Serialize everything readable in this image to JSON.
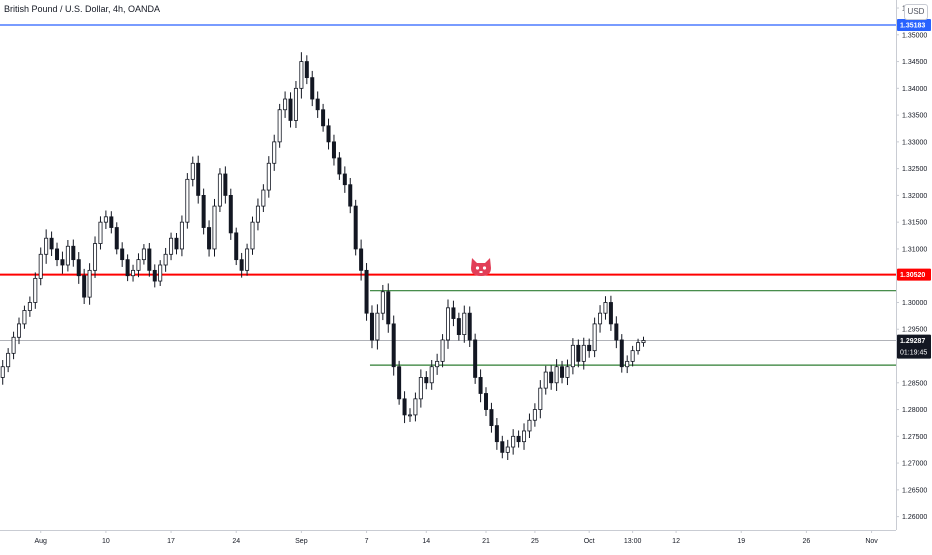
{
  "header": {
    "symbol_title": "British Pound / U.S. Dollar, 4h, OANDA",
    "currency_button": "USD"
  },
  "colors": {
    "candle": "#131722",
    "blue_line": "#2962ff",
    "red_line": "#ff0000",
    "green_line": "#2e7d32",
    "last_price_line": "#9598a1",
    "axis_text": "#131722",
    "logo": "#e23e57"
  },
  "chart_data": {
    "type": "candlestick",
    "title": "British Pound / U.S. Dollar, 4h, OANDA",
    "ylim": [
      1.2575,
      1.3565
    ],
    "y_ticks": [
      "1.26000",
      "1.26500",
      "1.27000",
      "1.27500",
      "1.28000",
      "1.28500",
      "1.29000",
      "1.29500",
      "1.30000",
      "1.30500",
      "1.31000",
      "1.31500",
      "1.32000",
      "1.32500",
      "1.33000",
      "1.33500",
      "1.34000",
      "1.34500",
      "1.35000",
      "1.35500"
    ],
    "x_ticks": [
      "Aug",
      "10",
      "17",
      "24",
      "Sep",
      "7",
      "14",
      "21",
      "25",
      "Oct",
      "13:00",
      "12",
      "19",
      "26",
      "Nov"
    ],
    "x_tick_index": [
      7,
      19,
      31,
      43,
      55,
      67,
      78,
      89,
      98,
      108,
      116,
      124,
      136,
      148,
      160
    ],
    "visible_bars": 165,
    "horizontal_lines": [
      {
        "name": "blue",
        "price": 1.35183,
        "label": "1.35183",
        "color": "#2962ff"
      },
      {
        "name": "red",
        "price": 1.3052,
        "label": "1.30520",
        "color": "#ff0000"
      },
      {
        "name": "green-upper",
        "price": 1.3022,
        "label": "",
        "color": "#2e7d32",
        "from_index": 68
      },
      {
        "name": "green-lower",
        "price": 1.2883,
        "label": "",
        "color": "#2e7d32",
        "from_index": 68
      }
    ],
    "last_price": {
      "value": 1.29287,
      "label": "1.29287",
      "countdown": "01:19:45"
    },
    "closes": [
      1.288,
      1.2905,
      1.2935,
      1.296,
      1.2985,
      1.3,
      1.3045,
      1.309,
      1.312,
      1.31,
      1.308,
      1.307,
      1.3105,
      1.308,
      1.305,
      1.301,
      1.306,
      1.311,
      1.315,
      1.316,
      1.314,
      1.31,
      1.308,
      1.305,
      1.306,
      1.308,
      1.31,
      1.306,
      1.304,
      1.307,
      1.309,
      1.312,
      1.31,
      1.315,
      1.323,
      1.326,
      1.32,
      1.314,
      1.31,
      1.318,
      1.324,
      1.32,
      1.313,
      1.308,
      1.306,
      1.31,
      1.315,
      1.318,
      1.321,
      1.326,
      1.33,
      1.336,
      1.338,
      1.334,
      1.34,
      1.345,
      1.342,
      1.338,
      1.336,
      1.333,
      1.33,
      1.327,
      1.324,
      1.322,
      1.318,
      1.31,
      1.306,
      1.298,
      1.293,
      1.298,
      1.302,
      1.296,
      1.288,
      1.282,
      1.279,
      1.279,
      1.282,
      1.286,
      1.285,
      1.288,
      1.289,
      1.293,
      1.299,
      1.297,
      1.294,
      1.298,
      1.293,
      1.286,
      1.283,
      1.28,
      1.277,
      1.274,
      1.272,
      1.273,
      1.275,
      1.274,
      1.276,
      1.278,
      1.28,
      1.284,
      1.287,
      1.285,
      1.288,
      1.286,
      1.288,
      1.292,
      1.289,
      1.292,
      1.291,
      1.296,
      1.298,
      1.3,
      1.296,
      1.293,
      1.288,
      1.289,
      1.291,
      1.2925,
      1.2929
    ],
    "amplitude": [
      0.0025,
      0.0025,
      0.0025,
      0.0025,
      0.0025,
      0.0025,
      0.0025,
      0.0035,
      0.0035,
      0.003,
      0.003,
      0.003,
      0.003,
      0.003,
      0.003,
      0.0035,
      0.003,
      0.003,
      0.003,
      0.0025,
      0.0025,
      0.0025,
      0.0025,
      0.0025,
      0.0025,
      0.0025,
      0.0025,
      0.0025,
      0.0025,
      0.0025,
      0.0025,
      0.0025,
      0.0025,
      0.0025,
      0.003,
      0.003,
      0.003,
      0.0035,
      0.003,
      0.003,
      0.003,
      0.003,
      0.003,
      0.0025,
      0.0025,
      0.0025,
      0.0025,
      0.003,
      0.003,
      0.003,
      0.003,
      0.003,
      0.003,
      0.003,
      0.0035,
      0.0035,
      0.003,
      0.003,
      0.003,
      0.003,
      0.003,
      0.003,
      0.003,
      0.003,
      0.003,
      0.003,
      0.0035,
      0.0035,
      0.0035,
      0.0035,
      0.0035,
      0.0035,
      0.0035,
      0.003,
      0.003,
      0.003,
      0.003,
      0.003,
      0.003,
      0.003,
      0.003,
      0.003,
      0.0035,
      0.003,
      0.003,
      0.003,
      0.003,
      0.003,
      0.003,
      0.003,
      0.003,
      0.003,
      0.003,
      0.003,
      0.003,
      0.003,
      0.003,
      0.003,
      0.003,
      0.003,
      0.003,
      0.003,
      0.003,
      0.003,
      0.003,
      0.003,
      0.003,
      0.003,
      0.003,
      0.003,
      0.003,
      0.003,
      0.003,
      0.003,
      0.003,
      0.0025,
      0.002,
      0.002,
      0.0015
    ]
  }
}
